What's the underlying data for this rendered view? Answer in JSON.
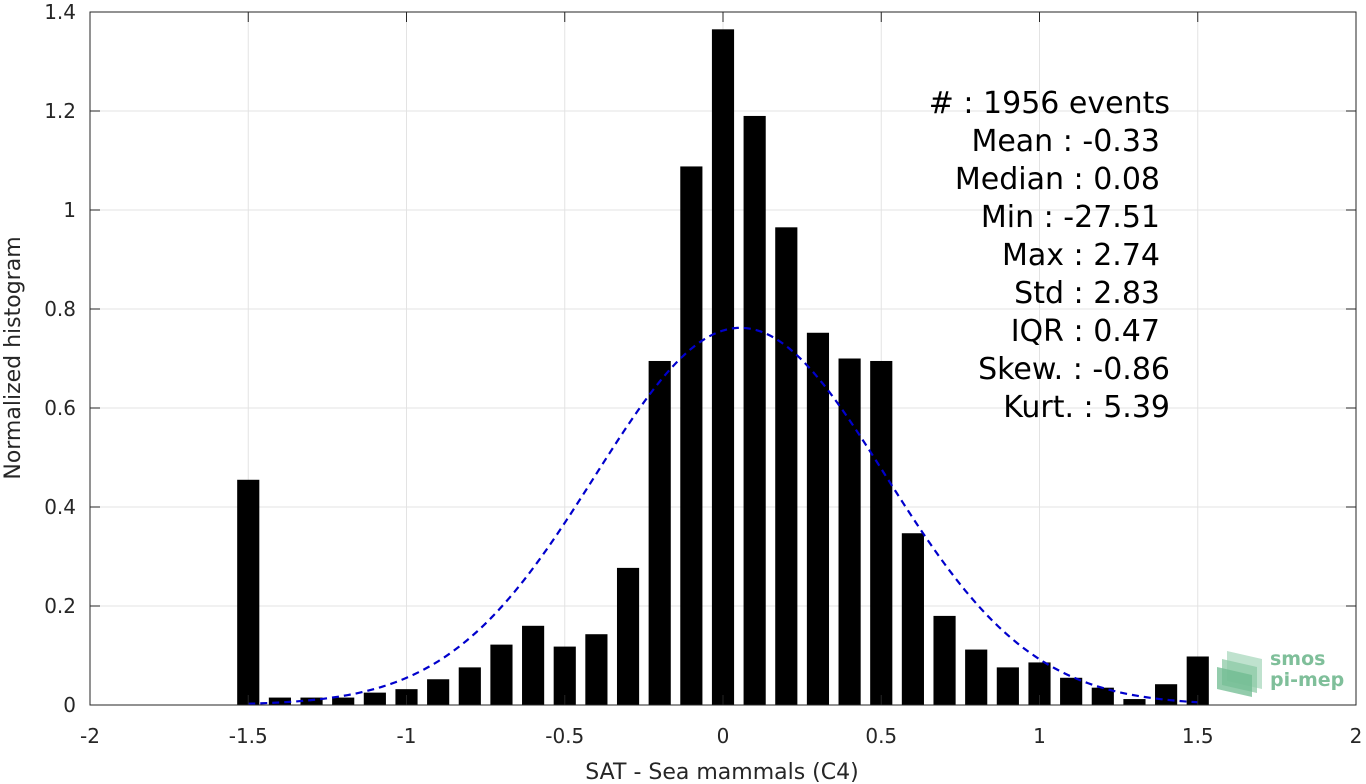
{
  "chart_data": {
    "type": "bar",
    "xlabel": "SAT - Sea mammals (C4)",
    "ylabel": "Normalized histogram",
    "xlim": [
      -2,
      2
    ],
    "ylim": [
      0,
      1.4
    ],
    "grid": true,
    "xticks": [
      -2,
      -1.5,
      -1,
      -0.5,
      0,
      0.5,
      1,
      1.5,
      2
    ],
    "xtick_labels": [
      "-2",
      "-1.5",
      "-1",
      "-0.5",
      "0",
      "0.5",
      "1",
      "1.5",
      "2"
    ],
    "yticks": [
      0,
      0.2,
      0.4,
      0.6,
      0.8,
      1,
      1.2,
      1.4
    ],
    "ytick_labels": [
      "0",
      "0.2",
      "0.4",
      "0.6",
      "0.8",
      "1",
      "1.2",
      "1.4"
    ],
    "bar_width": 0.07,
    "bars": {
      "x": [
        -1.5,
        -1.4,
        -1.3,
        -1.2,
        -1.1,
        -1.0,
        -0.9,
        -0.8,
        -0.7,
        -0.6,
        -0.5,
        -0.4,
        -0.3,
        -0.2,
        -0.1,
        0.0,
        0.1,
        0.2,
        0.3,
        0.4,
        0.5,
        0.6,
        0.7,
        0.8,
        0.9,
        1.0,
        1.1,
        1.2,
        1.3,
        1.4,
        1.5
      ],
      "values": [
        0.455,
        0.015,
        0.015,
        0.015,
        0.025,
        0.032,
        0.052,
        0.076,
        0.122,
        0.16,
        0.118,
        0.143,
        0.277,
        0.695,
        1.088,
        1.365,
        1.19,
        0.965,
        0.752,
        0.7,
        0.695,
        0.347,
        0.18,
        0.112,
        0.076,
        0.086,
        0.055,
        0.035,
        0.012,
        0.042,
        0.098
      ],
      "color": "#000000"
    },
    "fit": {
      "type": "gaussian",
      "mean": 0.055,
      "std": 0.46,
      "peak": 0.762,
      "x_range": [
        -1.5,
        1.5
      ],
      "color": "#0000cc",
      "style": "dashed"
    },
    "annotations": [
      "#  : 1956 events",
      "Mean : -0.33",
      "Median : 0.08",
      "Min : -27.51",
      "Max : 2.74",
      "Std : 2.83",
      "IQR : 0.47",
      "Skew. : -0.86",
      "Kurt. : 5.39"
    ]
  },
  "logo": {
    "line1": "smos",
    "line2": "pi-mep",
    "color": "#7fbf9a"
  }
}
